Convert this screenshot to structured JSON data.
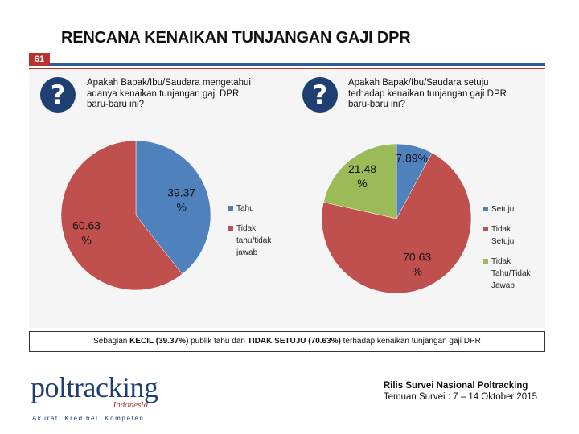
{
  "header": {
    "title": "RENCANA KENAIKAN TUNJANGAN GAJI DPR",
    "page_number": "61"
  },
  "left_panel": {
    "icon": "question-icon",
    "question": "Apakah Bapak/Ibu/Saudara mengetahui adanya kenaikan tunjangan gaji DPR baru-baru ini?"
  },
  "right_panel": {
    "icon": "question-icon",
    "question": "Apakah Bapak/Ibu/Saudara setuju terhadap kenaikan tunjangan gaji DPR baru-baru ini?"
  },
  "chart_data": [
    {
      "type": "pie",
      "title": "",
      "categories": [
        "Tahu",
        "Tidak tahu/tidak jawab"
      ],
      "values": [
        39.37,
        60.63
      ],
      "labels": [
        "39.37 %",
        "60.63 %"
      ],
      "colors": [
        "#4f81bd",
        "#c0504d"
      ],
      "legend": [
        "Tahu",
        "Tidak tahu/tidak jawab"
      ],
      "legend_lines": [
        [
          "Tahu"
        ],
        [
          "Tidak",
          "tahu/tidak",
          "jawab"
        ]
      ],
      "legend_position": "right"
    },
    {
      "type": "pie",
      "title": "",
      "categories": [
        "Setuju",
        "Tidak Setuju",
        "Tidak Tahu/Tidak Jawab"
      ],
      "values": [
        7.89,
        70.63,
        21.48
      ],
      "labels": [
        "7.89%",
        "70.63 %",
        "21.48 %"
      ],
      "colors": [
        "#4f81bd",
        "#c0504d",
        "#9bbb59"
      ],
      "legend": [
        "Setuju",
        "Tidak Setuju",
        "Tidak Tahu/Tidak Jawab"
      ],
      "legend_lines": [
        [
          "Setuju"
        ],
        [
          "Tidak",
          "Setuju"
        ],
        [
          "Tidak",
          "Tahu/Tidak",
          "Jawab"
        ]
      ],
      "legend_position": "right"
    }
  ],
  "conclusion": {
    "prefix": "Sebagian ",
    "bold1": "KECIL (39.37%)",
    "middle": " publik tahu dan ",
    "bold2": "TIDAK SETUJU (70.63%)",
    "suffix": " terhadap kenaikan tunjangan gaji DPR"
  },
  "logo": {
    "name": "poltracking",
    "sub": "Indonesia",
    "tagline": "Akurat. Kredibel. Kompeten"
  },
  "footer": {
    "line1": "Rilis Survei Nasional Poltracking",
    "line2": "Temuan Survei : 7 – 14 Oktober 2015"
  },
  "theme": {
    "navy": "#1f3f73",
    "red": "#b8322e"
  }
}
